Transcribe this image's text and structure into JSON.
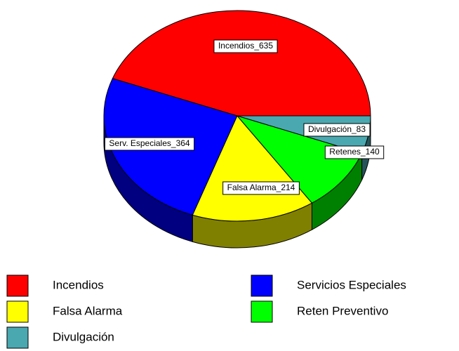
{
  "chart_data": {
    "type": "pie",
    "categories": [
      "Incendios",
      "Servicios Especiales",
      "Falsa Alarma",
      "Reten Preventivo",
      "Divulgación"
    ],
    "values": [
      635,
      364,
      214,
      140,
      83
    ],
    "value_labels": [
      "Incendios_635",
      "Serv. Especiales_364",
      "Falsa Alarma_214",
      "Retenes_140",
      "Divulgación_83"
    ],
    "colors": [
      "#ff0000",
      "#0000ff",
      "#ffff00",
      "#00ff00",
      "#4aa8b0"
    ],
    "legend": "bottom"
  }
}
